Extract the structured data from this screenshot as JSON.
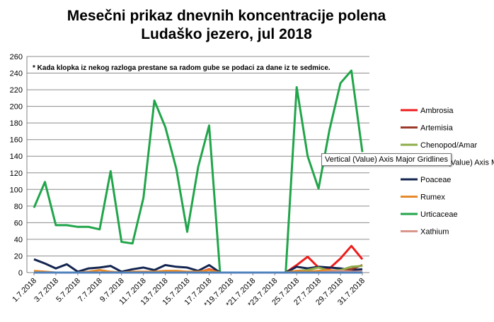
{
  "chart_data": {
    "type": "line",
    "title_line1": "Mesečni prikaz dnevnih koncentracije polena",
    "title_line2": "Ludaško jezero, jul 2018",
    "note": "* Kada klopka iz nekog razloga prestane sa radom gube se podaci za dane iz te sedmice.",
    "ylim": [
      0,
      260
    ],
    "ytick_step": 20,
    "grid": "horizontal",
    "legend_position": "right",
    "x": [
      "1.7.2018",
      "2.7.2018",
      "3.7.2018",
      "4.7.2018",
      "5.7.2018",
      "6.7.2018",
      "7.7.2018",
      "8.7.2018",
      "9.7.2018",
      "10.7.2018",
      "11.7.2018",
      "12.7.2018",
      "13.7.2018",
      "14.7.2018",
      "15.7.2018",
      "16.7.2018",
      "17.7.2018",
      "18.7.2018",
      "19.7.2018",
      "20.7.2018",
      "21.7.2018",
      "22.7.2018",
      "23.7.2018",
      "24.7.2018",
      "25.7.2018",
      "26.7.2018",
      "27.7.2018",
      "28.7.2018",
      "29.7.2018",
      "30.7.2018",
      "31.7.2018"
    ],
    "x_tick_labels": [
      "1.7.2018",
      "3.7.2018",
      "5.7.2018",
      "7.7.2018",
      "9.7.2018",
      "11.7.2018",
      "13.7.2018",
      "15.7.2018",
      "17.7.2018",
      "*19.7.2018",
      "*21.7.2018",
      "*23.7.2018",
      "25.7.2018",
      "27.7.2018",
      "29.7.2018",
      "31.7.2018"
    ],
    "series": [
      {
        "name": "Ambrosia",
        "color": "#ee1c1c",
        "values": [
          0,
          0,
          0,
          0,
          0,
          0,
          0,
          0,
          0,
          0,
          0,
          0,
          0,
          0,
          0,
          0,
          4,
          0,
          0,
          0,
          0,
          0,
          0,
          0,
          9,
          19,
          6,
          5,
          17,
          32,
          16
        ]
      },
      {
        "name": "Artemisia",
        "color": "#9b3a2a",
        "values": [
          0,
          0,
          0,
          0,
          0,
          0,
          0,
          0,
          0,
          0,
          0,
          0,
          0,
          0,
          0,
          0,
          0,
          0,
          0,
          0,
          0,
          0,
          0,
          0,
          1,
          1,
          1,
          2,
          3,
          4,
          9
        ]
      },
      {
        "name": "Chenopod/Amar",
        "color": "#8eac4a",
        "values": [
          0,
          0,
          0,
          0,
          0,
          0,
          0,
          0,
          0,
          0,
          0,
          0,
          0,
          0,
          0,
          0,
          0,
          0,
          0,
          0,
          0,
          0,
          0,
          0,
          2,
          3,
          6,
          2,
          3,
          7,
          8
        ]
      },
      {
        "name": "Vertical (Value) Axis Major Gridlines",
        "color": "#4f81bd",
        "values": [
          0,
          0,
          0,
          0,
          0,
          0,
          0,
          0,
          0,
          0,
          0,
          0,
          0,
          0,
          0,
          0,
          0,
          0,
          0,
          0,
          0,
          0,
          0,
          0,
          0,
          0,
          0,
          0,
          0,
          0,
          0
        ]
      },
      {
        "name": "Poaceae",
        "color": "#13244f",
        "values": [
          16,
          11,
          5,
          10,
          1,
          5,
          6,
          8,
          1,
          4,
          6,
          3,
          9,
          7,
          6,
          2,
          9,
          0,
          0,
          0,
          0,
          0,
          0,
          0,
          7,
          5,
          7,
          6,
          5,
          3,
          4
        ]
      },
      {
        "name": "Rumex",
        "color": "#e6892a",
        "values": [
          2,
          1,
          0,
          0,
          0,
          1,
          3,
          1,
          0,
          1,
          1,
          1,
          2,
          2,
          1,
          1,
          3,
          0,
          0,
          0,
          0,
          0,
          0,
          0,
          2,
          1,
          2,
          3,
          1,
          1,
          0
        ]
      },
      {
        "name": "Urticaceae",
        "color": "#21a54a",
        "values": [
          78,
          109,
          57,
          57,
          55,
          55,
          52,
          122,
          37,
          35,
          90,
          207,
          175,
          125,
          49,
          127,
          177,
          0,
          0,
          0,
          0,
          0,
          0,
          0,
          223,
          140,
          101,
          172,
          228,
          243,
          145
        ]
      },
      {
        "name": "Xathium",
        "color": "#d8968c",
        "values": [
          0,
          0,
          0,
          0,
          0,
          0,
          0,
          0,
          0,
          0,
          0,
          0,
          0,
          0,
          0,
          0,
          0,
          0,
          0,
          0,
          0,
          0,
          0,
          0,
          0,
          0,
          0,
          1,
          2,
          1,
          1
        ]
      }
    ]
  },
  "tooltip": "Vertical (Value) Axis Major Gridlines"
}
